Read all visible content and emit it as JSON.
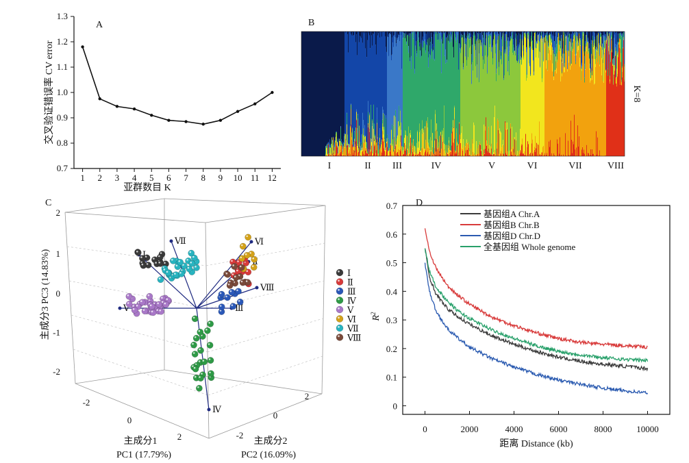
{
  "panels": {
    "A": "A",
    "B": "B",
    "C": "C",
    "D": "D"
  },
  "panelA": {
    "ylabel": "交叉验证错误率 CV error",
    "xlabel": "亚群数目 K",
    "yticks": [
      "0.7",
      "0.8",
      "0.9",
      "1.0",
      "1.1",
      "1.2",
      "1.3"
    ],
    "xticks": [
      "1",
      "2",
      "3",
      "4",
      "5",
      "6",
      "7",
      "8",
      "9",
      "10",
      "11",
      "12"
    ]
  },
  "panelB": {
    "k_label": "K=8",
    "groups": [
      "I",
      "II",
      "III",
      "IV",
      "V",
      "VI",
      "VII",
      "VIII"
    ],
    "colors": [
      "#0a1a4a",
      "#1346a8",
      "#3a78c8",
      "#2fa86a",
      "#8cc83c",
      "#f2e61e",
      "#f2a20e",
      "#e03018"
    ]
  },
  "panelC": {
    "ylabel": "主成分3 PC3 (14.83%)",
    "xlabel_cn": "主成分1",
    "xlabel_en": "PC1 (17.79%)",
    "zlabel_cn": "主成分2",
    "zlabel_en": "PC2 (16.09%)",
    "vticks": [
      "2",
      "1",
      "0",
      "-1",
      "-2"
    ],
    "pc1ticks": [
      "-2",
      "0",
      "2"
    ],
    "pc2ticks": [
      "-2",
      "0",
      "2"
    ],
    "legend": [
      {
        "label": "Ⅰ",
        "color": "#3a3a3a"
      },
      {
        "label": "Ⅱ",
        "color": "#d83a3a"
      },
      {
        "label": "Ⅲ",
        "color": "#2a58b8"
      },
      {
        "label": "Ⅳ",
        "color": "#2e9a46"
      },
      {
        "label": "Ⅴ",
        "color": "#a978c8"
      },
      {
        "label": "Ⅵ",
        "color": "#d4a21a"
      },
      {
        "label": "Ⅶ",
        "color": "#28b4c0"
      },
      {
        "label": "Ⅷ",
        "color": "#7a4a3a"
      }
    ],
    "arrow_labels": [
      "Ⅰ",
      "Ⅱ",
      "Ⅲ",
      "Ⅳ",
      "Ⅴ",
      "Ⅵ",
      "Ⅶ",
      "Ⅷ"
    ]
  },
  "chart_data": [
    {
      "type": "line",
      "panel": "A",
      "xlabel": "亚群数目 K",
      "ylabel": "交叉验证错误率 CV error",
      "x": [
        1,
        2,
        3,
        4,
        5,
        6,
        7,
        8,
        9,
        10,
        11,
        12
      ],
      "y": [
        1.18,
        0.975,
        0.945,
        0.935,
        0.91,
        0.89,
        0.885,
        0.875,
        0.89,
        0.925,
        0.955,
        1.0
      ],
      "xlim": [
        0.5,
        12.5
      ],
      "ylim": [
        0.7,
        1.3
      ]
    },
    {
      "type": "area",
      "panel": "B",
      "k": 8,
      "categories": [
        "Ⅰ",
        "Ⅱ",
        "Ⅲ",
        "Ⅳ",
        "Ⅴ",
        "Ⅵ",
        "Ⅶ",
        "Ⅷ"
      ]
    },
    {
      "type": "scatter",
      "panel": "C",
      "xlabel": "PC1 (17.79%)",
      "ylabel": "PC3 (14.83%)",
      "zlabel": "PC2 (16.09%)",
      "series": [
        {
          "name": "Ⅰ"
        },
        {
          "name": "Ⅱ"
        },
        {
          "name": "Ⅲ"
        },
        {
          "name": "Ⅳ"
        },
        {
          "name": "Ⅴ"
        },
        {
          "name": "Ⅵ"
        },
        {
          "name": "Ⅶ"
        },
        {
          "name": "Ⅷ"
        }
      ]
    },
    {
      "type": "line",
      "panel": "D",
      "xlabel": "距离 Distance (kb)",
      "ylabel": "R²",
      "xlim": [
        -1000,
        11000
      ],
      "ylim": [
        -0.03,
        0.7
      ],
      "xticks": [
        "0",
        "2000",
        "4000",
        "6000",
        "8000",
        "10000"
      ],
      "yticks": [
        "0",
        "0.1",
        "0.2",
        "0.3",
        "0.4",
        "0.5",
        "0.6",
        "0.7"
      ],
      "series": [
        {
          "name": "基因组A Chr.A",
          "color": "#3a3a3a",
          "x": [
            0,
            200,
            500,
            1000,
            1500,
            2000,
            3000,
            4000,
            5000,
            6000,
            7000,
            8000,
            9000,
            10000
          ],
          "y": [
            0.55,
            0.45,
            0.39,
            0.34,
            0.31,
            0.285,
            0.245,
            0.215,
            0.19,
            0.17,
            0.155,
            0.145,
            0.138,
            0.13
          ]
        },
        {
          "name": "基因组B Chr.B",
          "color": "#d83a3a",
          "x": [
            0,
            200,
            500,
            1000,
            1500,
            2000,
            3000,
            4000,
            5000,
            6000,
            7000,
            8000,
            9000,
            10000
          ],
          "y": [
            0.62,
            0.54,
            0.48,
            0.42,
            0.385,
            0.355,
            0.31,
            0.28,
            0.255,
            0.235,
            0.222,
            0.215,
            0.21,
            0.205
          ]
        },
        {
          "name": "基因组D Chr.D",
          "color": "#2a5ab0",
          "x": [
            0,
            200,
            500,
            1000,
            1500,
            2000,
            3000,
            4000,
            5000,
            6000,
            7000,
            8000,
            9000,
            10000
          ],
          "y": [
            0.5,
            0.4,
            0.33,
            0.27,
            0.235,
            0.205,
            0.165,
            0.135,
            0.11,
            0.09,
            0.075,
            0.062,
            0.052,
            0.045
          ]
        },
        {
          "name": "全基因组 Whole genome",
          "color": "#28a06a",
          "x": [
            0,
            200,
            500,
            1000,
            1500,
            2000,
            3000,
            4000,
            5000,
            6000,
            7000,
            8000,
            9000,
            10000
          ],
          "y": [
            0.55,
            0.47,
            0.415,
            0.365,
            0.33,
            0.305,
            0.265,
            0.235,
            0.21,
            0.19,
            0.178,
            0.168,
            0.162,
            0.158
          ]
        }
      ]
    }
  ]
}
